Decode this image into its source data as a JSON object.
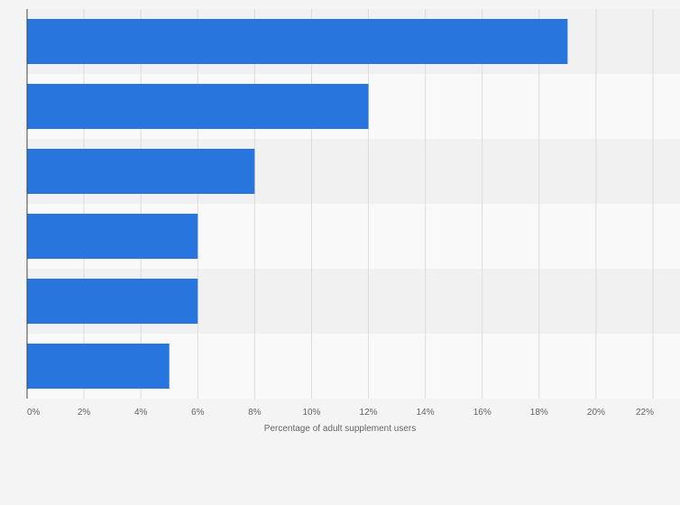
{
  "chart_data": {
    "type": "bar",
    "orientation": "horizontal",
    "categories": [
      "",
      "",
      "",
      "",
      "",
      ""
    ],
    "values": [
      19,
      12,
      8,
      6,
      6,
      5
    ],
    "xlabel": "Percentage of adult supplement users",
    "xlim": [
      0,
      22
    ],
    "xticks": [
      "0%",
      "2%",
      "4%",
      "6%",
      "8%",
      "10%",
      "12%",
      "14%",
      "16%",
      "18%",
      "20%",
      "22%"
    ],
    "grid": true,
    "legend": "none",
    "colors": {
      "bar": "#2876dd",
      "band_dark": "#f1f1f1",
      "band_light": "#f9f9f9",
      "grid": "#dcdcdc",
      "axis": "#444444"
    }
  }
}
